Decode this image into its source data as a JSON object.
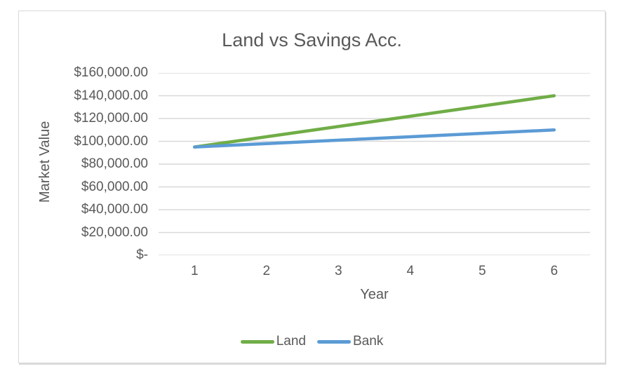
{
  "chart_data": {
    "type": "line",
    "title": "Land vs Savings Acc.",
    "xlabel": "Year",
    "ylabel": "Market Value",
    "categories": [
      "1",
      "2",
      "3",
      "4",
      "5",
      "6"
    ],
    "series": [
      {
        "name": "Land",
        "color": "#70AD47",
        "values": [
          95000,
          104000,
          113000,
          122000,
          131000,
          140000
        ]
      },
      {
        "name": "Bank",
        "color": "#5B9BD5",
        "values": [
          95000,
          98000,
          101000,
          104000,
          107000,
          110000
        ]
      }
    ],
    "ylim": [
      0,
      160000
    ],
    "ytick_step": 20000,
    "ytick_labels": [
      "$-",
      "$20,000.00",
      "$40,000.00",
      "$60,000.00",
      "$80,000.00",
      "$100,000.00",
      "$120,000.00",
      "$140,000.00",
      "$160,000.00"
    ],
    "grid": true,
    "legend_position": "bottom",
    "styles": {
      "line_width": 4.5,
      "gridline_width": 1.4,
      "text_color": "#595959",
      "gridline_color": "#D9D9D9",
      "border_color": "#D9D9D9",
      "background": "#FFFFFF"
    }
  }
}
